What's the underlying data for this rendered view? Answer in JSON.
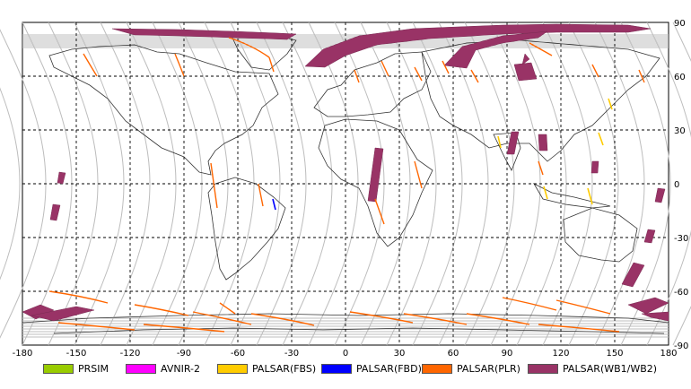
{
  "map": {
    "lon_ticks": [
      "-180",
      "-150",
      "-120",
      "-90",
      "-60",
      "-30",
      "0",
      "30",
      "60",
      "90",
      "120",
      "150",
      "180"
    ],
    "lat_ticks": [
      "90",
      "60",
      "30",
      "0",
      "-30",
      "-60",
      "-90"
    ]
  },
  "legend": [
    {
      "label": "PRSIM",
      "color": "#99cc00"
    },
    {
      "label": "AVNIR-2",
      "color": "#ff00ff"
    },
    {
      "label": "PALSAR(FBS)",
      "color": "#ffcc00"
    },
    {
      "label": "PALSAR(FBD)",
      "color": "#0000ff"
    },
    {
      "label": "PALSAR(PLR)",
      "color": "#ff6600"
    },
    {
      "label": "PALSAR(WB1/WB2)",
      "color": "#993366"
    }
  ]
}
